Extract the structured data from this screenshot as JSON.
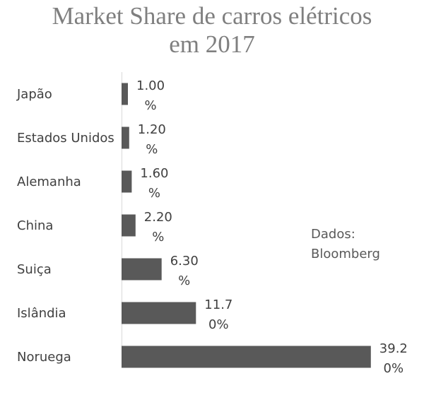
{
  "chart_data": {
    "type": "bar",
    "orientation": "horizontal",
    "title_lines": [
      "Market Share de carros elétricos",
      "em 2017"
    ],
    "categories": [
      "Japão",
      "Estados Unidos",
      "Alemanha",
      "China",
      "Suiça",
      "Islândia",
      "Noruega"
    ],
    "values": [
      1.0,
      1.2,
      1.6,
      2.2,
      6.3,
      11.7,
      39.2
    ],
    "data_labels": [
      [
        "1.00",
        "%"
      ],
      [
        "1.20",
        "%"
      ],
      [
        "1.60",
        "%"
      ],
      [
        "2.20",
        "%"
      ],
      [
        "6.30",
        "%"
      ],
      [
        "11.7",
        "0%"
      ],
      [
        "39.2",
        "0%"
      ]
    ],
    "xlim": [
      0,
      40
    ],
    "grid": false,
    "legend": "none",
    "bar_color": "#595959"
  },
  "annotation": {
    "line1": "Dados:",
    "line2": "Bloomberg"
  }
}
